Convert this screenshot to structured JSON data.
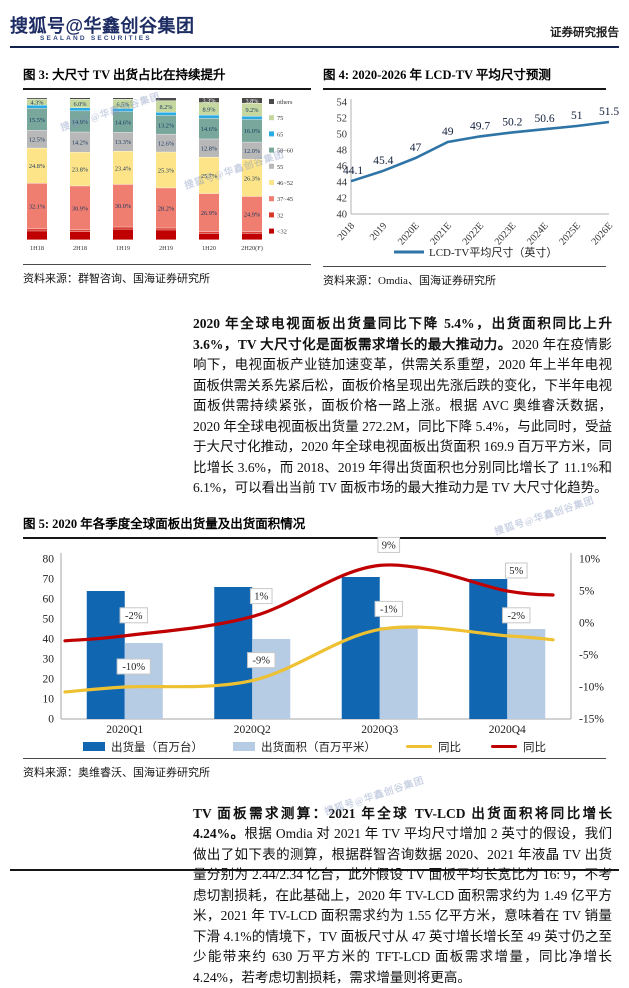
{
  "header": {
    "brand_watermark": "搜狐号@华鑫创谷集团",
    "logo_subtext": "SEALAND SECURITIES",
    "right_label": "证券研究报告"
  },
  "watermark_text": "搜狐号@华鑫创谷集团",
  "para1": {
    "lead": "2020 年全球电视面板出货量同比下降 5.4%，出货面积同比上升 3.6%，TV 大尺寸化是面板需求增长的最大推动力。",
    "body": "2020 年在疫情影响下，电视面板产业链加速变革，供需关系重塑，2020 年上半年电视面板供需关系先紧后松，面板价格呈现出先涨后跌的变化，下半年电视面板供需持续紧张，面板价格一路上涨。根据 AVC 奥维睿沃数据，2020 年全球电视面板出货量 272.2M，同比下降 5.4%，与此同时，受益于大尺寸化推动，2020 年全球电视面板出货面积 169.9 百万平方米，同比增长 3.6%，而 2018、2019 年得出货面积也分别同比增长了 11.1%和 6.1%，可以看出当前 TV 面板市场的最大推动力是 TV 大尺寸化趋势。"
  },
  "para2": {
    "lead": "TV 面板需求测算：2021 年全球 TV-LCD 出货面积将同比增长 4.24%。",
    "body": "根据 Omdia 对 2021 年 TV 平均尺寸增加 2 英寸的假设，我们做出了如下表的测算，根据群智咨询数据 2020、2021 年液晶 TV 出货量分别为 2.44/2.34 亿台，此外假设 TV 面板平均长宽比为 16: 9，不考虑切割损耗，在此基础上，2020 年 TV-LCD 面积需求约为 1.49 亿平方米，2021 年 TV-LCD 面积需求约为 1.55 亿平方米，意味着在 TV 销量下滑 4.1%的情境下，TV 面板尺寸从 47 英寸增长增长至 49 英寸仍之至少能带来约 630 万平方米的 TFT-LCD 面板需求增量，同比净增长 4.24%，若考虑切割损耗，需求增量则将更高。"
  },
  "chart_data": [
    {
      "id": "fig3",
      "type": "bar",
      "stacked": true,
      "title": "图 3: 大尺寸 TV 出货占比在持续提升",
      "source": "资料来源：群智咨询、国海证券研究所",
      "unit": "%",
      "ylim": [
        0,
        100
      ],
      "grid": false,
      "legend_position": "right",
      "categories": [
        "1H18",
        "2H18",
        "1H19",
        "2H19",
        "1H20",
        "2H20(F)"
      ],
      "series": [
        {
          "name": "<32",
          "color": "#c00000",
          "values": [
            6.2,
            5.7,
            7.5,
            6.9,
            4.4,
            4.5
          ],
          "labels": [
            "",
            "",
            "",
            "",
            "",
            ""
          ]
        },
        {
          "name": "32",
          "color": "#d8372a",
          "values": [
            1.5,
            1.3,
            1.5,
            1.4,
            1.2,
            1.1
          ],
          "labels": [
            "",
            "",
            "",
            "",
            "",
            ""
          ]
        },
        {
          "name": "37~45",
          "color": "#ef7d70",
          "values": [
            32.1,
            30.9,
            30.0,
            28.2,
            26.9,
            24.9
          ],
          "labels": [
            "32.1%",
            "30.9%",
            "30.0%",
            "28.2%",
            "26.9%",
            "24.9%"
          ]
        },
        {
          "name": "46~52",
          "color": "#fde488",
          "values": [
            24.8,
            23.8,
            23.4,
            25.3,
            25.7,
            26.3
          ],
          "labels": [
            "24.8%",
            "23.8%",
            "23.4%",
            "25.3%",
            "25.7%",
            "26.3%"
          ]
        },
        {
          "name": "55",
          "color": "#b8b8b8",
          "values": [
            12.5,
            14.2,
            13.3,
            12.6,
            12.8,
            12.0
          ],
          "labels": [
            "12.5%",
            "14.2%",
            "13.3%",
            "12.6%",
            "12.8%",
            "12.0%"
          ]
        },
        {
          "name": "58~60",
          "color": "#7aa79c",
          "values": [
            15.5,
            14.9,
            14.6,
            13.2,
            14.6,
            16.0
          ],
          "labels": [
            "15.5%",
            "14.9%",
            "14.6%",
            "13.2%",
            "14.6%",
            "16.0%"
          ]
        },
        {
          "name": "65",
          "color": "#2aabe4",
          "values": [
            2.2,
            2.2,
            2.2,
            2.2,
            2.2,
            2.2
          ],
          "labels": [
            "",
            "",
            "",
            "",
            "",
            ""
          ]
        },
        {
          "name": "75",
          "color": "#c6d8a0",
          "values": [
            4.3,
            6.0,
            6.5,
            8.2,
            8.9,
            9.2
          ],
          "labels": [
            "4.3%",
            "6.0%",
            "6.5%",
            "8.2%",
            "8.9%",
            "9.2%"
          ]
        },
        {
          "name": "others",
          "color": "#4a4a4a",
          "label_color": "#ffffff",
          "values": [
            0.9,
            1.0,
            1.0,
            2.0,
            3.3,
            3.8
          ],
          "labels": [
            "",
            "",
            "",
            "",
            "3.3%",
            "3.8%"
          ]
        }
      ]
    },
    {
      "id": "fig4",
      "type": "line",
      "title": "图 4: 2020-2026 年 LCD-TV 平均尺寸预测",
      "source": "资料来源：Omdia、国海证券研究所",
      "series_name": "LCD-TV平均尺寸（英寸）",
      "color": "#2e74a6",
      "x": [
        "2018",
        "2019",
        "2020E",
        "2021E",
        "2022E",
        "2023E",
        "2024E",
        "2025E",
        "2026E"
      ],
      "values": [
        44.1,
        45.4,
        47,
        49,
        49.7,
        50.2,
        50.6,
        51,
        51.5
      ],
      "point_labels": [
        "44.1",
        "45.4",
        "47",
        "49",
        "49.7",
        "50.2",
        "50.6",
        "51",
        "51.5"
      ],
      "ylim": [
        40,
        54
      ],
      "ytick_step": 2,
      "grid": false,
      "legend_position": "bottom"
    },
    {
      "id": "fig5",
      "type": "bar+line",
      "title": "图 5: 2020 年各季度全球面板出货量及出货面积情况",
      "source": "资料来源：奥维睿沃、国海证券研究所",
      "categories": [
        "2020Q1",
        "2020Q2",
        "2020Q3",
        "2020Q4"
      ],
      "bar_series": [
        {
          "name": "出货量（百万台）",
          "color": "#1166b2",
          "axis": "left",
          "values": [
            64,
            66,
            71,
            70
          ]
        },
        {
          "name": "出货面积（百万平米）",
          "color": "#b6cbe4",
          "axis": "left",
          "values": [
            38,
            40,
            46,
            45
          ]
        }
      ],
      "line_series": [
        {
          "name": "同比",
          "color": "#eec132",
          "axis": "right",
          "values": [
            -10,
            -9,
            -1,
            -2
          ],
          "labels": [
            "-10%",
            "-9%",
            "-1%",
            "-2%"
          ]
        },
        {
          "name": "同比",
          "color": "#c00000",
          "axis": "right",
          "values": [
            -2,
            1,
            9,
            5
          ],
          "labels": [
            "-2%",
            "1%",
            "9%",
            "5%"
          ]
        }
      ],
      "left_ylim": [
        0,
        80
      ],
      "left_ytick_step": 10,
      "right_ylim": [
        -15,
        10
      ],
      "right_ytick_step": 5,
      "grid": false,
      "legend_position": "bottom"
    }
  ]
}
